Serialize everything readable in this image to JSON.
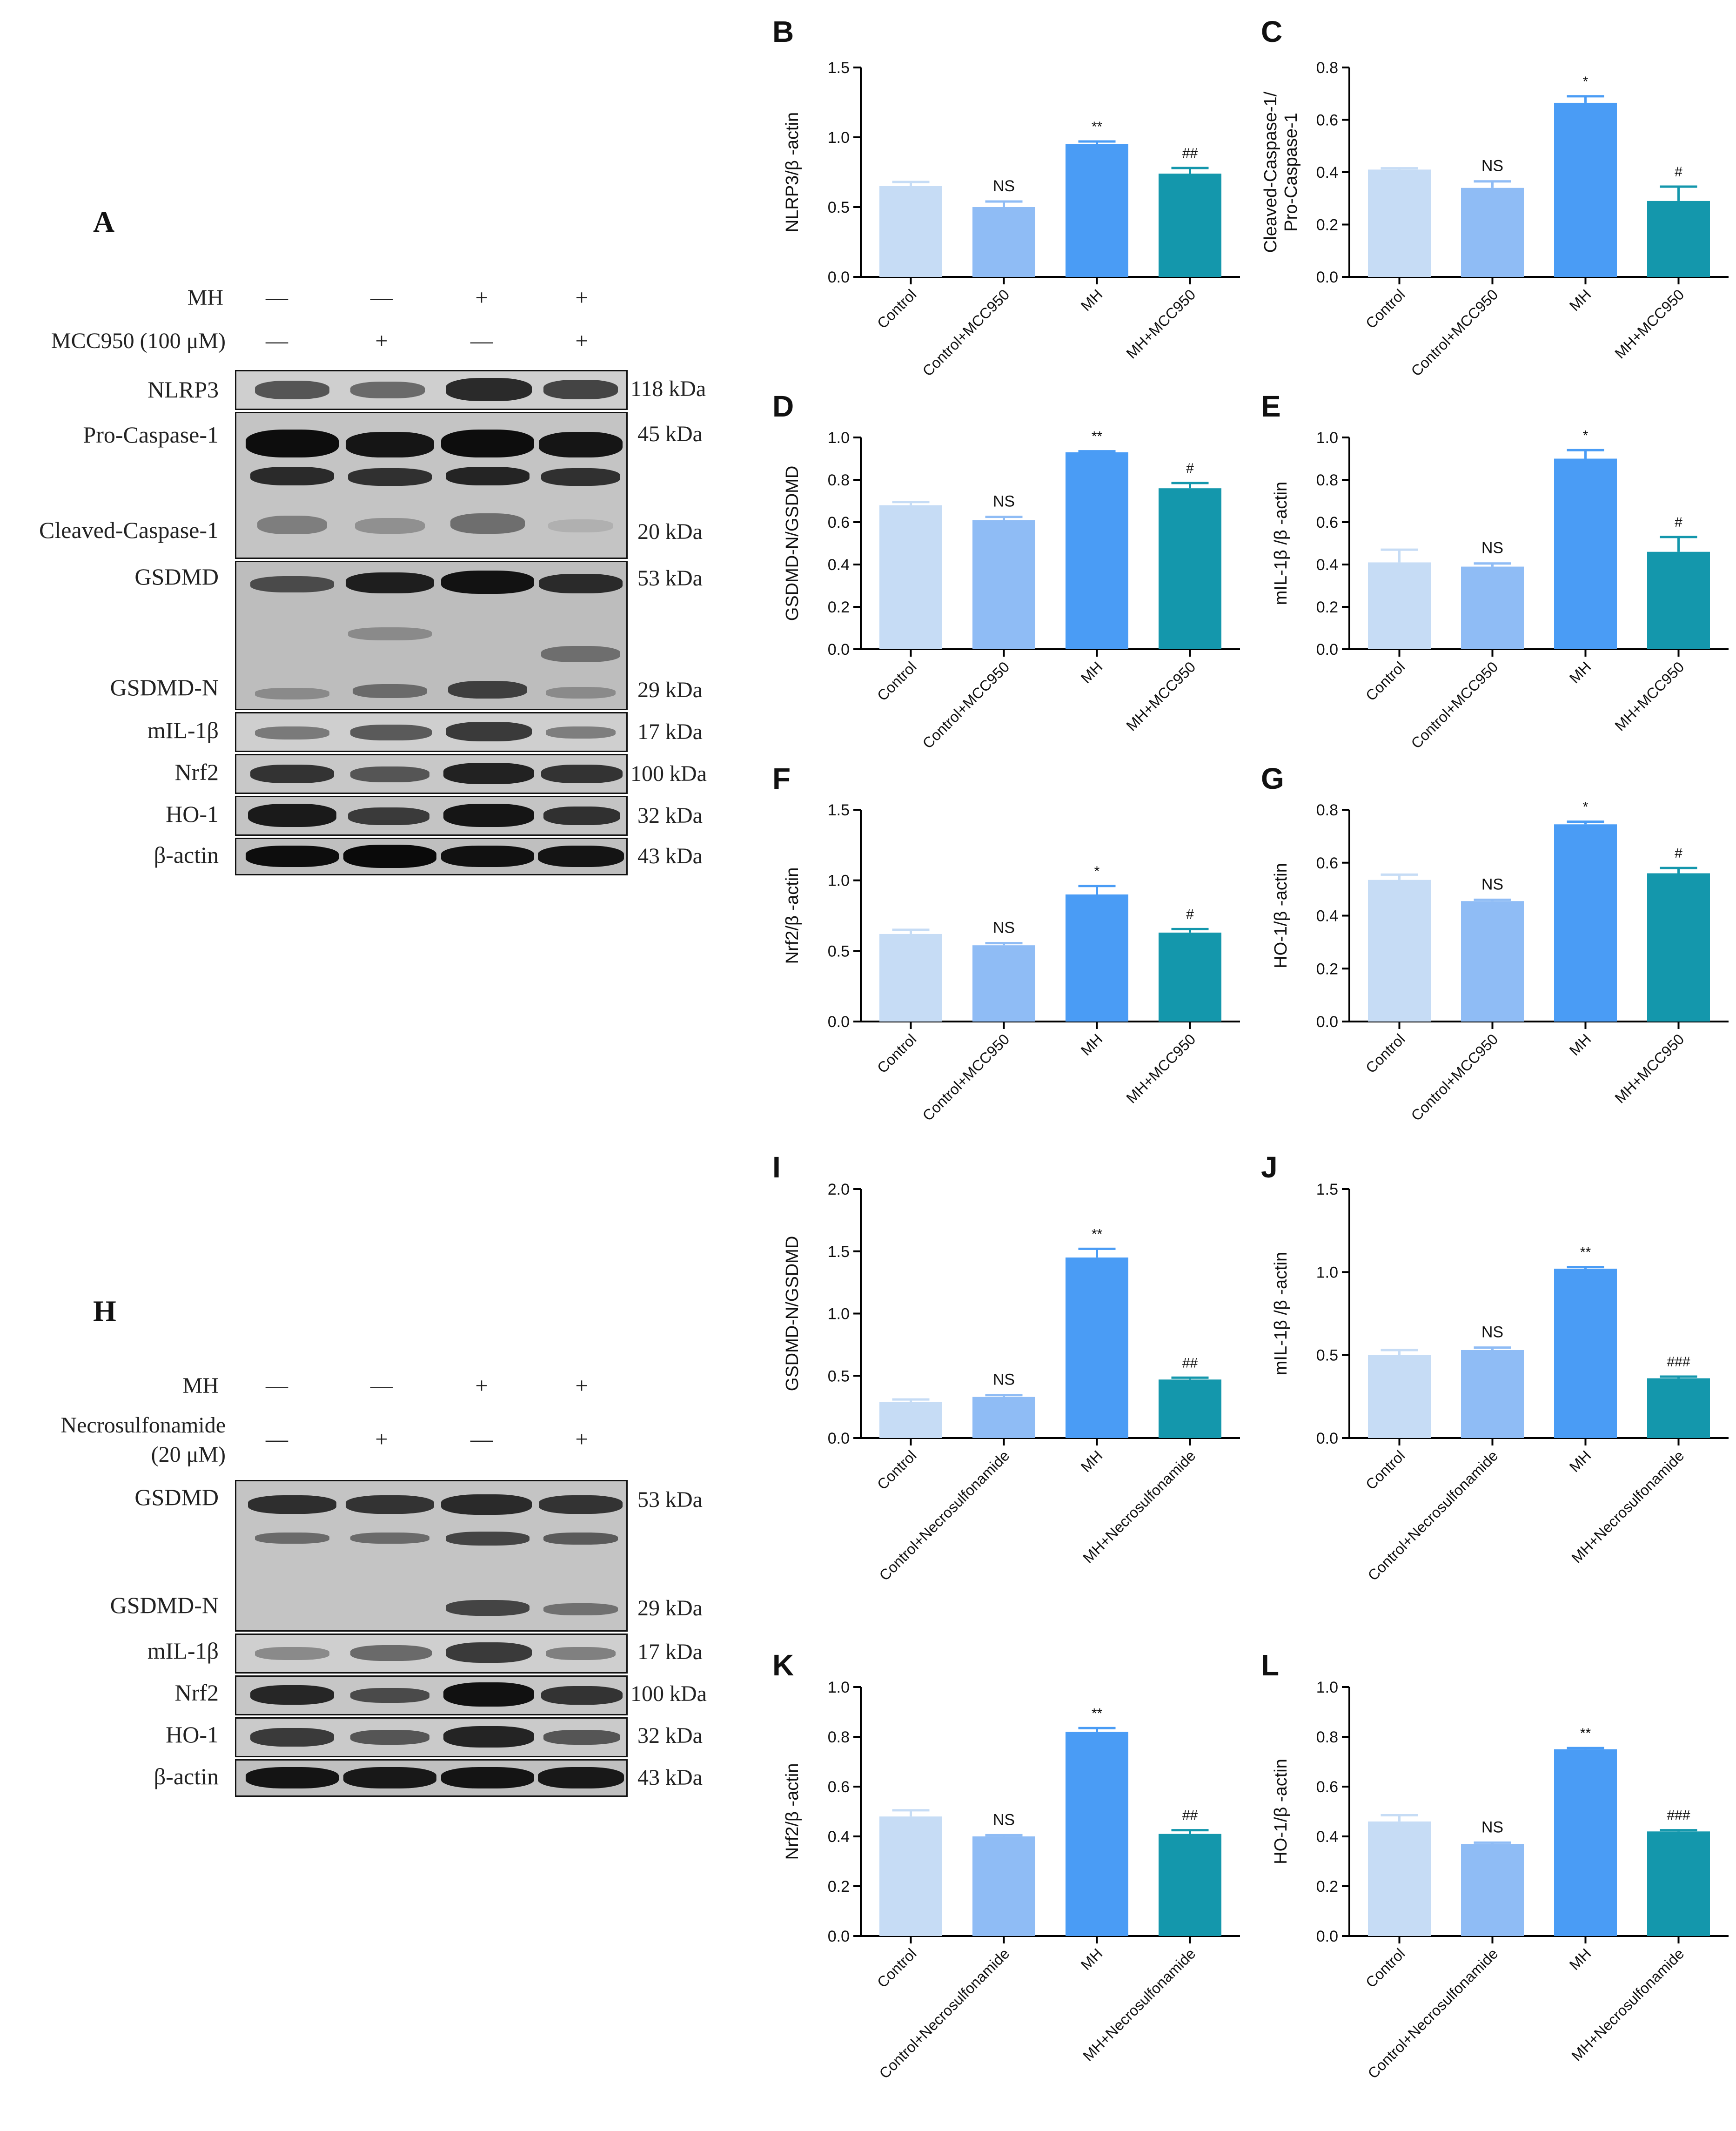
{
  "colors": {
    "c1": "#c6dcf5",
    "c2": "#8fbcf5",
    "c3": "#4a9cf5",
    "c4": "#1497ac",
    "axis": "#000000"
  },
  "westernA": {
    "letter": "A",
    "conditions": [
      {
        "label": "MH",
        "signs": [
          "—",
          "—",
          "+",
          "+"
        ]
      },
      {
        "label": "MCC950 (100 μM)",
        "signs": [
          "—",
          "+",
          "—",
          "+"
        ]
      }
    ],
    "blots": [
      {
        "labels": [
          "NLRP3"
        ],
        "kda": [
          "118 kDa"
        ]
      },
      {
        "labels": [
          "Pro-Caspase-1",
          "Cleaved-Caspase-1"
        ],
        "kda": [
          "45 kDa",
          "20 kDa"
        ]
      },
      {
        "labels": [
          "GSDMD",
          "GSDMD-N"
        ],
        "kda": [
          "53 kDa",
          "29 kDa"
        ]
      },
      {
        "labels": [
          "mIL-1β"
        ],
        "kda": [
          "17 kDa"
        ]
      },
      {
        "labels": [
          "Nrf2"
        ],
        "kda": [
          "100 kDa"
        ]
      },
      {
        "labels": [
          "HO-1"
        ],
        "kda": [
          "32 kDa"
        ]
      },
      {
        "labels": [
          "β-actin"
        ],
        "kda": [
          "43 kDa"
        ]
      }
    ]
  },
  "westernH": {
    "letter": "H",
    "conditions": [
      {
        "label": "MH",
        "signs": [
          "—",
          "—",
          "+",
          "+"
        ]
      },
      {
        "label": "Necrosulfonamide",
        "label2": "(20 μM)",
        "signs": [
          "—",
          "+",
          "—",
          "+"
        ]
      }
    ],
    "blots": [
      {
        "labels": [
          "GSDMD",
          "GSDMD-N"
        ],
        "kda": [
          "53 kDa",
          "29 kDa"
        ]
      },
      {
        "labels": [
          "mIL-1β"
        ],
        "kda": [
          "17 kDa"
        ]
      },
      {
        "labels": [
          "Nrf2"
        ],
        "kda": [
          "100 kDa"
        ]
      },
      {
        "labels": [
          "HO-1"
        ],
        "kda": [
          "32 kDa"
        ]
      },
      {
        "labels": [
          "β-actin"
        ],
        "kda": [
          "43 kDa"
        ]
      }
    ]
  },
  "chart_data": [
    {
      "panel": "B",
      "type": "bar",
      "ylabel": [
        "NLRP3/β -actin"
      ],
      "ylim": [
        0,
        1.5
      ],
      "ticks": [
        "0.0",
        "0.5",
        "1.0",
        "1.5"
      ],
      "categories": [
        "Control",
        "Control+MCC950",
        "MH",
        "MH+MCC950"
      ],
      "values": [
        0.65,
        0.5,
        0.95,
        0.74
      ],
      "errors": [
        0.03,
        0.04,
        0.02,
        0.04
      ],
      "annotations": [
        "",
        "NS",
        "**",
        "##"
      ]
    },
    {
      "panel": "C",
      "type": "bar",
      "ylabel": [
        "Cleaved-Caspase-1/",
        "Pro-Caspase-1"
      ],
      "ylim": [
        0,
        0.8
      ],
      "ticks": [
        "0.0",
        "0.2",
        "0.4",
        "0.6",
        "0.8"
      ],
      "categories": [
        "Control",
        "Control+MCC950",
        "MH",
        "MH+MCC950"
      ],
      "values": [
        0.41,
        0.34,
        0.665,
        0.29
      ],
      "errors": [
        0.005,
        0.025,
        0.025,
        0.055
      ],
      "annotations": [
        "",
        "NS",
        "*",
        "#"
      ]
    },
    {
      "panel": "D",
      "type": "bar",
      "ylabel": [
        "GSDMD-N/GSDMD"
      ],
      "ylim": [
        0,
        1.0
      ],
      "ticks": [
        "0.0",
        "0.2",
        "0.4",
        "0.6",
        "0.8",
        "1.0"
      ],
      "categories": [
        "Control",
        "Control+MCC950",
        "MH",
        "MH+MCC950"
      ],
      "values": [
        0.68,
        0.61,
        0.93,
        0.76
      ],
      "errors": [
        0.015,
        0.015,
        0.005,
        0.025
      ],
      "annotations": [
        "",
        "NS",
        "**",
        "#"
      ]
    },
    {
      "panel": "E",
      "type": "bar",
      "ylabel": [
        "mIL-1β /β -actin"
      ],
      "ylim": [
        0,
        1.0
      ],
      "ticks": [
        "0.0",
        "0.2",
        "0.4",
        "0.6",
        "0.8",
        "1.0"
      ],
      "categories": [
        "Control",
        "Control+MCC950",
        "MH",
        "MH+MCC950"
      ],
      "values": [
        0.41,
        0.39,
        0.9,
        0.46
      ],
      "errors": [
        0.06,
        0.015,
        0.04,
        0.07
      ],
      "annotations": [
        "",
        "NS",
        "*",
        "#"
      ]
    },
    {
      "panel": "F",
      "type": "bar",
      "ylabel": [
        "Nrf2/β -actin"
      ],
      "ylim": [
        0,
        1.5
      ],
      "ticks": [
        "0.0",
        "0.5",
        "1.0",
        "1.5"
      ],
      "categories": [
        "Control",
        "Control+MCC950",
        "MH",
        "MH+MCC950"
      ],
      "values": [
        0.62,
        0.54,
        0.9,
        0.63
      ],
      "errors": [
        0.03,
        0.015,
        0.06,
        0.025
      ],
      "annotations": [
        "",
        "NS",
        "*",
        "#"
      ]
    },
    {
      "panel": "G",
      "type": "bar",
      "ylabel": [
        "HO-1/β -actin"
      ],
      "ylim": [
        0,
        0.8
      ],
      "ticks": [
        "0.0",
        "0.2",
        "0.4",
        "0.6",
        "0.8"
      ],
      "categories": [
        "Control",
        "Control+MCC950",
        "MH",
        "MH+MCC950"
      ],
      "values": [
        0.535,
        0.455,
        0.745,
        0.56
      ],
      "errors": [
        0.02,
        0.005,
        0.01,
        0.02
      ],
      "annotations": [
        "",
        "NS",
        "*",
        "#"
      ]
    },
    {
      "panel": "I",
      "type": "bar",
      "ylabel": [
        "GSDMD-N/GSDMD"
      ],
      "ylim": [
        0,
        2.0
      ],
      "ticks": [
        "0.0",
        "0.5",
        "1.0",
        "1.5",
        "2.0"
      ],
      "categories": [
        "Control",
        "Control+Necrosulfonamide",
        "MH",
        "MH+Necrosulfonamide"
      ],
      "values": [
        0.29,
        0.33,
        1.45,
        0.47
      ],
      "errors": [
        0.02,
        0.015,
        0.07,
        0.015
      ],
      "annotations": [
        "",
        "NS",
        "**",
        "##"
      ]
    },
    {
      "panel": "J",
      "type": "bar",
      "ylabel": [
        "mIL-1β /β -actin"
      ],
      "ylim": [
        0,
        1.5
      ],
      "ticks": [
        "0.0",
        "0.5",
        "1.0",
        "1.5"
      ],
      "categories": [
        "Control",
        "Control+Necrosulfonamide",
        "MH",
        "MH+Necrosulfonamide"
      ],
      "values": [
        0.5,
        0.53,
        1.02,
        0.36
      ],
      "errors": [
        0.03,
        0.015,
        0.01,
        0.01
      ],
      "annotations": [
        "",
        "NS",
        "**",
        "###"
      ]
    },
    {
      "panel": "K",
      "type": "bar",
      "ylabel": [
        "Nrf2/β -actin"
      ],
      "ylim": [
        0,
        1.0
      ],
      "ticks": [
        "0.0",
        "0.2",
        "0.4",
        "0.6",
        "0.8",
        "1.0"
      ],
      "categories": [
        "Control",
        "Control+Necrosulfonamide",
        "MH",
        "MH+Necrosulfonamide"
      ],
      "values": [
        0.48,
        0.4,
        0.82,
        0.41
      ],
      "errors": [
        0.025,
        0.005,
        0.015,
        0.015
      ],
      "annotations": [
        "",
        "NS",
        "**",
        "##"
      ]
    },
    {
      "panel": "L",
      "type": "bar",
      "ylabel": [
        "HO-1/β -actin"
      ],
      "ylim": [
        0,
        1.0
      ],
      "ticks": [
        "0.0",
        "0.2",
        "0.4",
        "0.6",
        "0.8",
        "1.0"
      ],
      "categories": [
        "Control",
        "Control+Necrosulfonamide",
        "MH",
        "MH+Necrosulfonamide"
      ],
      "values": [
        0.46,
        0.37,
        0.75,
        0.42
      ],
      "errors": [
        0.025,
        0.005,
        0.005,
        0.005
      ],
      "annotations": [
        "",
        "NS",
        "**",
        "###"
      ]
    }
  ]
}
